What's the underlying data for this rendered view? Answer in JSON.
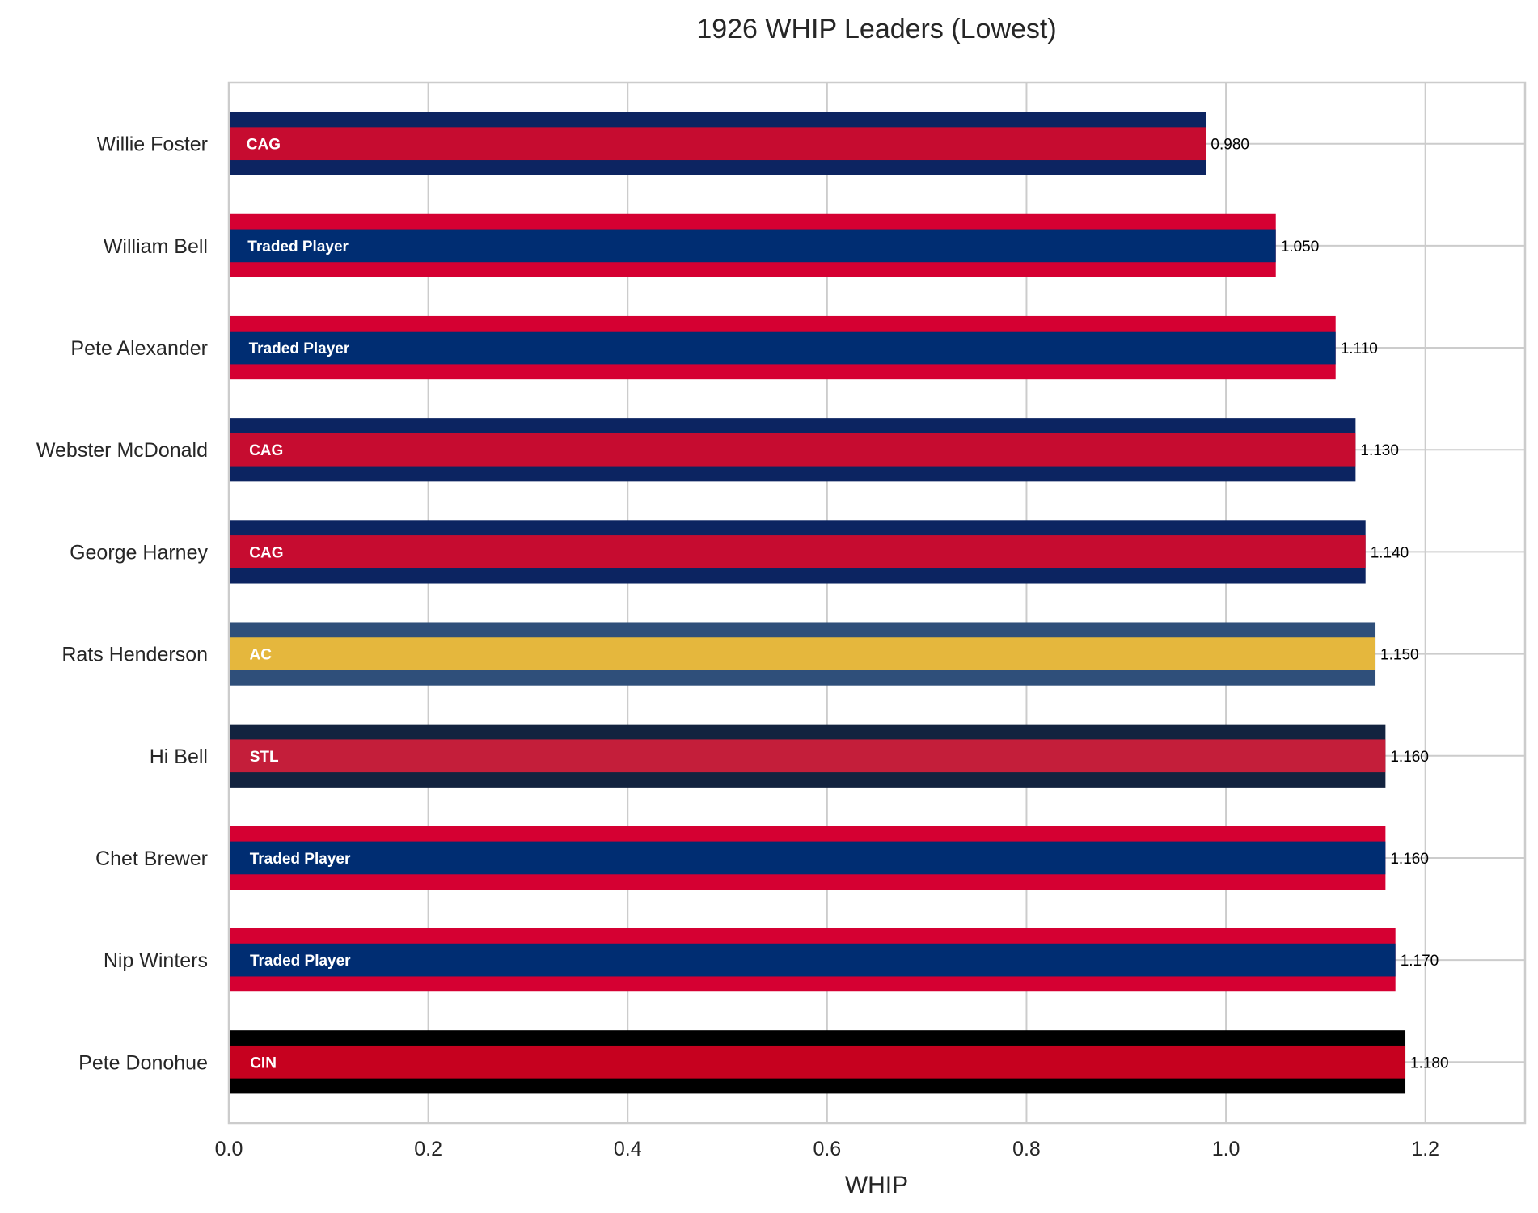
{
  "chart_data": {
    "type": "bar",
    "orientation": "horizontal",
    "title": "1926 WHIP Leaders (Lowest)",
    "xlabel": "WHIP",
    "ylabel": "",
    "xlim": [
      0,
      1.3
    ],
    "xticks": [
      "0.0",
      "0.2",
      "0.4",
      "0.6",
      "0.8",
      "1.0",
      "1.2"
    ],
    "grid": true,
    "legend": "none",
    "categories": [
      "Willie Foster",
      "William Bell",
      "Pete Alexander",
      "Webster McDonald",
      "George Harney",
      "Rats Henderson",
      "Hi Bell",
      "Chet Brewer",
      "Nip Winters",
      "Pete Donohue"
    ],
    "values": [
      0.98,
      1.05,
      1.11,
      1.13,
      1.14,
      1.15,
      1.16,
      1.16,
      1.17,
      1.18
    ],
    "value_labels": [
      "0.980",
      "1.050",
      "1.110",
      "1.130",
      "1.140",
      "1.150",
      "1.160",
      "1.160",
      "1.170",
      "1.180"
    ],
    "teams": [
      "CAG",
      "Traded Player",
      "Traded Player",
      "CAG",
      "CAG",
      "AC",
      "STL",
      "Traded Player",
      "Traded Player",
      "CIN"
    ],
    "primary_colors": [
      "#0C2461",
      "#D50032",
      "#D50032",
      "#0C2461",
      "#0C2461",
      "#2F4F7A",
      "#13233F",
      "#D50032",
      "#D50032",
      "#000000"
    ],
    "secondary_colors": [
      "#C60C30",
      "#002D72",
      "#002D72",
      "#C60C30",
      "#C60C30",
      "#E5B73D",
      "#C41E3A",
      "#002D72",
      "#002D72",
      "#C6011F"
    ],
    "grid_color": "#CCCCCC",
    "frame_color": "#CCCCCC"
  }
}
